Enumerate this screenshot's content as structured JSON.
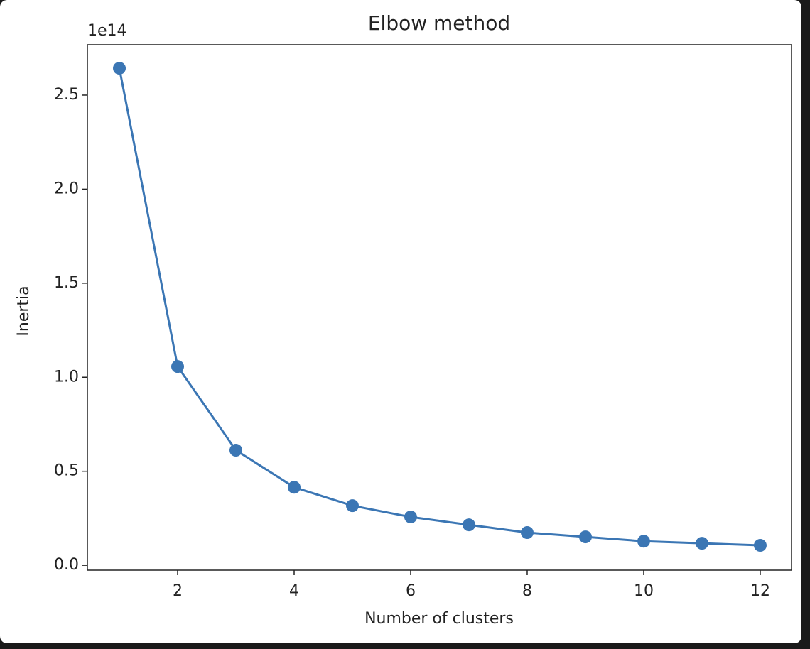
{
  "chart_data": {
    "type": "line",
    "title": "Elbow method",
    "x_label": "Number of clusters",
    "y_label": "Inertia",
    "y_offset_text": "1e14",
    "x": [
      1,
      2,
      3,
      4,
      5,
      6,
      7,
      8,
      9,
      10,
      11,
      12
    ],
    "values": [
      2.643,
      1.057,
      0.612,
      0.415,
      0.317,
      0.257,
      0.215,
      0.174,
      0.151,
      0.128,
      0.117,
      0.106
    ],
    "color": "#3b76b4",
    "marker": true,
    "xlim": [
      0.451,
      12.537
    ],
    "xticks": [
      2,
      4,
      6,
      8,
      10,
      12
    ],
    "ylim": [
      -0.026,
      2.768
    ],
    "yticks": [
      {
        "value": 0,
        "label": "0.0"
      },
      {
        "value": 0.5,
        "label": "0.5"
      },
      {
        "value": 1,
        "label": "1.0"
      },
      {
        "value": 1.5,
        "label": "1.5"
      },
      {
        "value": 2,
        "label": "2.0"
      },
      {
        "value": 2.5,
        "label": "2.5"
      }
    ],
    "grid": false
  }
}
